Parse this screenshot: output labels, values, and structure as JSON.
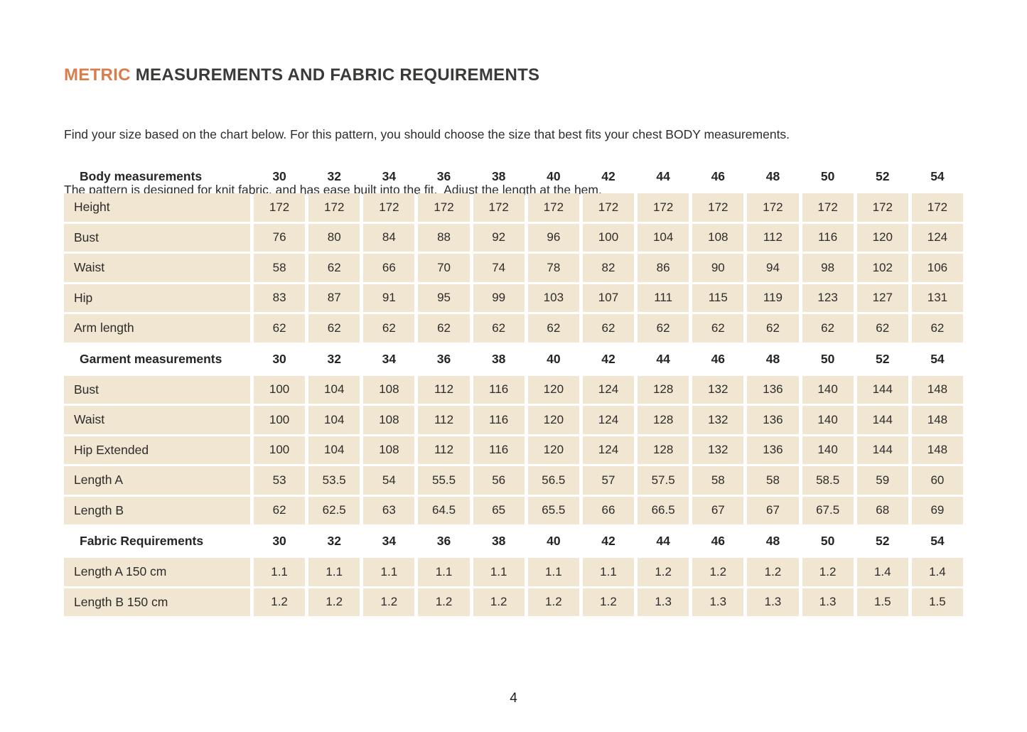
{
  "page": {
    "title_highlight": "METRIC",
    "title_rest": " MEASUREMENTS AND FABRIC REQUIREMENTS",
    "intro_line1": "Find your size based on the chart below. For this pattern, you should choose the size that best fits your chest BODY measurements.",
    "intro_line2": "The pattern is designed for knit fabric, and has ease built into the fit.  Adjust the length at the hem.",
    "page_number": "4"
  },
  "colors": {
    "accent_orange": "#d97d4e",
    "cell_background": "#f1e6d2",
    "text": "#2d2c2b"
  },
  "table": {
    "sizes": [
      "30",
      "32",
      "34",
      "36",
      "38",
      "40",
      "42",
      "44",
      "46",
      "48",
      "50",
      "52",
      "54"
    ],
    "sections": [
      {
        "header": "Body measurements",
        "rows": [
          {
            "label": "Height",
            "values": [
              "172",
              "172",
              "172",
              "172",
              "172",
              "172",
              "172",
              "172",
              "172",
              "172",
              "172",
              "172",
              "172"
            ]
          },
          {
            "label": "Bust",
            "values": [
              "76",
              "80",
              "84",
              "88",
              "92",
              "96",
              "100",
              "104",
              "108",
              "112",
              "116",
              "120",
              "124"
            ]
          },
          {
            "label": "Waist",
            "values": [
              "58",
              "62",
              "66",
              "70",
              "74",
              "78",
              "82",
              "86",
              "90",
              "94",
              "98",
              "102",
              "106"
            ]
          },
          {
            "label": "Hip",
            "values": [
              "83",
              "87",
              "91",
              "95",
              "99",
              "103",
              "107",
              "111",
              "115",
              "119",
              "123",
              "127",
              "131"
            ]
          },
          {
            "label": "Arm length",
            "values": [
              "62",
              "62",
              "62",
              "62",
              "62",
              "62",
              "62",
              "62",
              "62",
              "62",
              "62",
              "62",
              "62"
            ]
          }
        ]
      },
      {
        "header": "Garment measurements",
        "rows": [
          {
            "label": "Bust",
            "values": [
              "100",
              "104",
              "108",
              "112",
              "116",
              "120",
              "124",
              "128",
              "132",
              "136",
              "140",
              "144",
              "148"
            ]
          },
          {
            "label": "Waist",
            "values": [
              "100",
              "104",
              "108",
              "112",
              "116",
              "120",
              "124",
              "128",
              "132",
              "136",
              "140",
              "144",
              "148"
            ]
          },
          {
            "label": "Hip Extended",
            "values": [
              "100",
              "104",
              "108",
              "112",
              "116",
              "120",
              "124",
              "128",
              "132",
              "136",
              "140",
              "144",
              "148"
            ]
          },
          {
            "label": "Length A",
            "values": [
              "53",
              "53.5",
              "54",
              "55.5",
              "56",
              "56.5",
              "57",
              "57.5",
              "58",
              "58",
              "58.5",
              "59",
              "60"
            ]
          },
          {
            "label": "Length B",
            "values": [
              "62",
              "62.5",
              "63",
              "64.5",
              "65",
              "65.5",
              "66",
              "66.5",
              "67",
              "67",
              "67.5",
              "68",
              "69"
            ]
          }
        ]
      },
      {
        "header": "Fabric Requirements",
        "rows": [
          {
            "label": "Length A 150 cm",
            "values": [
              "1.1",
              "1.1",
              "1.1",
              "1.1",
              "1.1",
              "1.1",
              "1.1",
              "1.2",
              "1.2",
              "1.2",
              "1.2",
              "1.4",
              "1.4"
            ]
          },
          {
            "label": "Length B 150 cm",
            "values": [
              "1.2",
              "1.2",
              "1.2",
              "1.2",
              "1.2",
              "1.2",
              "1.2",
              "1.3",
              "1.3",
              "1.3",
              "1.3",
              "1.5",
              "1.5"
            ]
          }
        ]
      }
    ]
  }
}
